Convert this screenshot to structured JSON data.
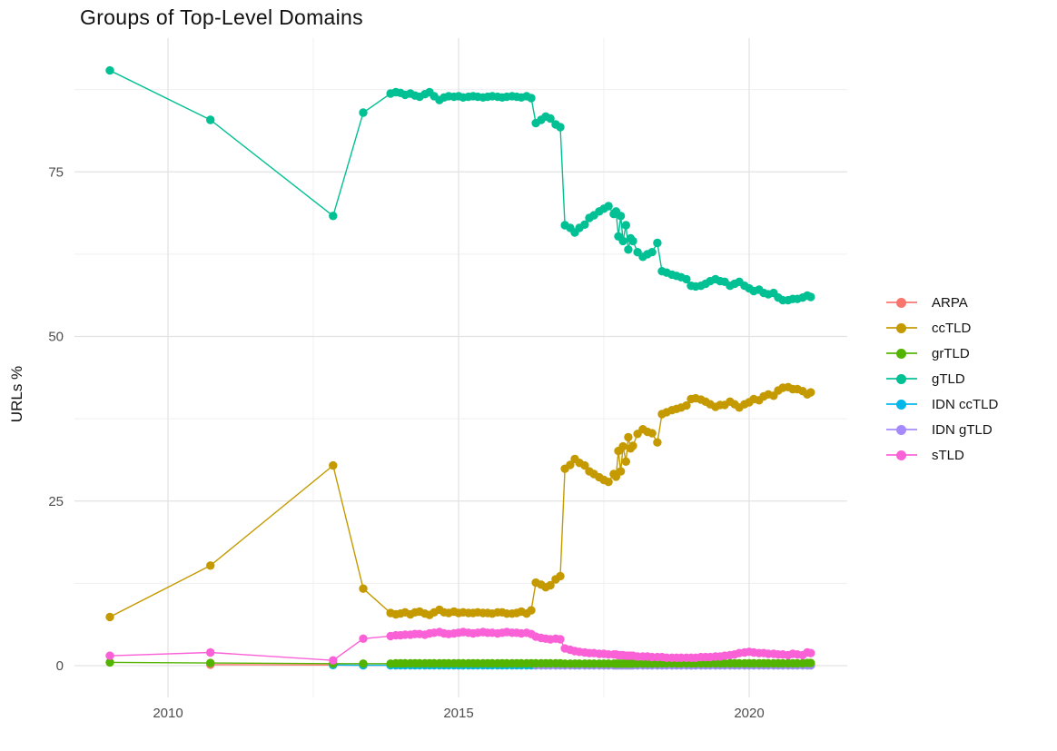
{
  "title": "Groups of Top-Level Domains",
  "chart_data": {
    "type": "line",
    "title": "Groups of Top-Level Domains",
    "xlabel": "",
    "ylabel": "URLs %",
    "legend_position": "right",
    "grid": true,
    "background": "#ffffff",
    "grid_major_color": "#e3e3e3",
    "grid_minor_color": "#efefef",
    "xlim": [
      2008.4,
      2021.7
    ],
    "ylim": [
      -4.8,
      95.3
    ],
    "x_ticks": [
      2010,
      2015,
      2020
    ],
    "x_tick_labels": [
      "2010",
      "2015",
      "2020"
    ],
    "x_minor_ticks": [
      2012.5,
      2017.5
    ],
    "y_ticks": [
      0,
      25,
      50,
      75
    ],
    "y_tick_labels": [
      "0",
      "25",
      "50",
      "75"
    ],
    "y_minor_ticks": [
      12.5,
      37.5,
      62.5,
      87.5
    ],
    "x": [
      2009.0,
      2010.73,
      2012.84,
      2013.36,
      2013.83,
      2013.92,
      2014.0,
      2014.08,
      2014.17,
      2014.25,
      2014.33,
      2014.42,
      2014.5,
      2014.58,
      2014.67,
      2014.75,
      2014.83,
      2014.92,
      2015.0,
      2015.08,
      2015.17,
      2015.25,
      2015.33,
      2015.42,
      2015.5,
      2015.58,
      2015.67,
      2015.75,
      2015.83,
      2015.92,
      2016.0,
      2016.08,
      2016.17,
      2016.25,
      2016.33,
      2016.42,
      2016.5,
      2016.58,
      2016.67,
      2016.75,
      2016.83,
      2016.92,
      2017.0,
      2017.08,
      2017.17,
      2017.25,
      2017.33,
      2017.42,
      2017.5,
      2017.58,
      2017.67,
      2017.71,
      2017.75,
      2017.79,
      2017.83,
      2017.88,
      2017.92,
      2017.96,
      2018.0,
      2018.08,
      2018.17,
      2018.25,
      2018.33,
      2018.42,
      2018.5,
      2018.58,
      2018.67,
      2018.75,
      2018.83,
      2018.92,
      2019.0,
      2019.08,
      2019.17,
      2019.25,
      2019.33,
      2019.42,
      2019.5,
      2019.58,
      2019.67,
      2019.75,
      2019.83,
      2019.92,
      2020.0,
      2020.08,
      2020.17,
      2020.25,
      2020.33,
      2020.42,
      2020.5,
      2020.58,
      2020.67,
      2020.75,
      2020.83,
      2020.92,
      2021.0,
      2021.06
    ],
    "series": [
      {
        "name": "ARPA",
        "color": "#F8766D",
        "values": [
          null,
          0.15,
          0.1,
          0.05,
          0.05,
          0.05,
          0.05,
          0.05,
          0.05,
          0.05,
          0.05,
          0.05,
          0.05,
          0.05,
          0.05,
          0.05,
          0.05,
          0.05,
          0.05,
          0.05,
          0.05,
          0.05,
          0.05,
          0.05,
          0.05,
          0.05,
          0.05,
          0.05,
          0.05,
          0.05,
          0.05,
          0.05,
          0.05,
          0.05,
          0.05,
          0.05,
          0.05,
          0.05,
          0.05,
          0.05,
          0.05,
          0.05,
          0.05,
          0.05,
          0.05,
          0.05,
          0.05,
          0.05,
          0.05,
          0.05,
          0.05,
          0.05,
          0.05,
          0.05,
          0.05,
          0.05,
          0.05,
          0.05,
          0.05,
          0.05,
          0.05,
          0.05,
          0.05,
          0.05,
          0.05,
          0.05,
          0.05,
          0.05,
          0.05,
          0.05,
          0.05,
          0.05,
          0.05,
          0.05,
          0.05,
          0.05,
          0.05,
          0.05,
          0.05,
          0.05,
          0.05,
          0.05,
          0.05,
          0.05,
          0.05,
          0.05,
          0.05,
          0.05,
          0.05,
          0.05,
          0.05,
          0.05,
          0.05,
          0.05,
          0.05,
          0.05
        ]
      },
      {
        "name": "ccTLD",
        "color": "#C49A00",
        "values": [
          7.4,
          15.2,
          30.4,
          11.7,
          8.0,
          7.8,
          7.9,
          8.1,
          7.8,
          8.1,
          8.2,
          7.9,
          7.7,
          8.1,
          8.5,
          8.1,
          8.0,
          8.2,
          8.0,
          8.1,
          8.0,
          8.0,
          8.1,
          8.0,
          8.0,
          7.9,
          8.1,
          8.1,
          7.9,
          7.9,
          8.0,
          8.2,
          7.9,
          8.4,
          12.6,
          12.3,
          11.9,
          12.2,
          13.1,
          13.6,
          29.9,
          30.5,
          31.4,
          30.8,
          30.4,
          29.5,
          29.1,
          28.6,
          28.2,
          27.9,
          29.1,
          28.7,
          32.6,
          29.5,
          33.3,
          31.0,
          34.7,
          33.0,
          33.4,
          35.2,
          35.9,
          35.5,
          35.3,
          33.9,
          38.2,
          38.5,
          38.8,
          39.0,
          39.2,
          39.5,
          40.5,
          40.6,
          40.4,
          40.1,
          39.7,
          39.3,
          39.6,
          39.6,
          40.1,
          39.7,
          39.2,
          39.7,
          40.0,
          40.5,
          40.3,
          40.9,
          41.2,
          41.0,
          41.8,
          42.2,
          42.3,
          42.0,
          42.0,
          41.7,
          41.2,
          41.5
        ]
      },
      {
        "name": "grTLD",
        "color": "#53B400",
        "values": [
          0.5,
          0.4,
          0.3,
          0.3,
          0.3,
          0.35,
          0.35,
          0.35,
          0.35,
          0.35,
          0.35,
          0.35,
          0.35,
          0.35,
          0.35,
          0.35,
          0.35,
          0.35,
          0.35,
          0.35,
          0.35,
          0.35,
          0.35,
          0.35,
          0.35,
          0.35,
          0.35,
          0.35,
          0.35,
          0.35,
          0.35,
          0.35,
          0.35,
          0.35,
          0.35,
          0.35,
          0.35,
          0.35,
          0.35,
          0.35,
          0.3,
          0.3,
          0.3,
          0.3,
          0.3,
          0.3,
          0.3,
          0.3,
          0.3,
          0.3,
          0.3,
          0.3,
          0.3,
          0.3,
          0.3,
          0.3,
          0.3,
          0.3,
          0.3,
          0.3,
          0.3,
          0.3,
          0.3,
          0.3,
          0.35,
          0.35,
          0.35,
          0.35,
          0.35,
          0.35,
          0.35,
          0.35,
          0.35,
          0.35,
          0.35,
          0.35,
          0.35,
          0.35,
          0.35,
          0.35,
          0.35,
          0.35,
          0.35,
          0.35,
          0.35,
          0.35,
          0.35,
          0.35,
          0.35,
          0.35,
          0.35,
          0.35,
          0.35,
          0.35,
          0.4,
          0.4
        ]
      },
      {
        "name": "gTLD",
        "color": "#00C094",
        "values": [
          90.4,
          82.9,
          68.3,
          84.0,
          86.9,
          87.1,
          87.0,
          86.7,
          86.9,
          86.6,
          86.4,
          86.8,
          87.1,
          86.5,
          85.9,
          86.3,
          86.5,
          86.4,
          86.5,
          86.3,
          86.4,
          86.5,
          86.4,
          86.3,
          86.4,
          86.5,
          86.4,
          86.3,
          86.4,
          86.5,
          86.4,
          86.3,
          86.5,
          86.2,
          82.4,
          82.9,
          83.4,
          83.1,
          82.2,
          81.8,
          66.9,
          66.5,
          65.8,
          66.5,
          67.0,
          68.0,
          68.4,
          69.0,
          69.4,
          69.8,
          68.6,
          69.0,
          65.2,
          68.3,
          64.5,
          66.9,
          63.2,
          64.9,
          64.5,
          62.8,
          62.1,
          62.5,
          62.8,
          64.2,
          59.9,
          59.7,
          59.4,
          59.2,
          59.0,
          58.7,
          57.7,
          57.6,
          57.7,
          58.0,
          58.4,
          58.7,
          58.4,
          58.3,
          57.7,
          58.0,
          58.3,
          57.7,
          57.3,
          56.9,
          57.1,
          56.6,
          56.4,
          56.6,
          55.9,
          55.5,
          55.5,
          55.7,
          55.7,
          55.9,
          56.2,
          56.0
        ]
      },
      {
        "name": "IDN ccTLD",
        "color": "#00B6EB",
        "values": [
          null,
          null,
          0.1,
          0.05,
          0.05,
          0.05,
          0.05,
          0.05,
          0.05,
          0.05,
          0.05,
          0.05,
          0.05,
          0.05,
          0.05,
          0.05,
          0.05,
          0.05,
          0.05,
          0.05,
          0.05,
          0.05,
          0.05,
          0.05,
          0.05,
          0.05,
          0.05,
          0.05,
          0.05,
          0.05,
          0.05,
          0.05,
          0.05,
          0.05,
          0.05,
          0.05,
          0.05,
          0.05,
          0.05,
          0.05,
          0.05,
          0.05,
          0.05,
          0.05,
          0.05,
          0.05,
          0.05,
          0.05,
          0.05,
          0.05,
          0.05,
          0.05,
          0.05,
          0.05,
          0.05,
          0.05,
          0.05,
          0.05,
          0.05,
          0.05,
          0.05,
          0.05,
          0.05,
          0.05,
          0.05,
          0.05,
          0.05,
          0.05,
          0.05,
          0.05,
          0.05,
          0.05,
          0.05,
          0.05,
          0.05,
          0.05,
          0.05,
          0.05,
          0.05,
          0.05,
          0.05,
          0.05,
          0.05,
          0.05,
          0.05,
          0.05,
          0.05,
          0.05,
          0.05,
          0.05,
          0.05,
          0.05,
          0.05,
          0.05,
          0.05,
          0.05
        ]
      },
      {
        "name": "IDN gTLD",
        "color": "#A58AFF",
        "values": [
          null,
          null,
          null,
          null,
          null,
          null,
          null,
          null,
          null,
          null,
          null,
          null,
          null,
          null,
          null,
          null,
          null,
          null,
          null,
          null,
          null,
          null,
          null,
          null,
          null,
          null,
          null,
          null,
          null,
          null,
          null,
          null,
          null,
          null,
          0.1,
          0.08,
          0.08,
          0.08,
          0.08,
          0.08,
          0.08,
          0.08,
          0.08,
          0.08,
          0.08,
          0.08,
          0.08,
          0.08,
          0.08,
          0.08,
          0.08,
          0.08,
          0.08,
          0.08,
          0.08,
          0.08,
          0.08,
          0.08,
          0.08,
          0.08,
          0.08,
          0.08,
          0.08,
          0.08,
          0.08,
          0.08,
          0.08,
          0.08,
          0.08,
          0.08,
          0.08,
          0.08,
          0.08,
          0.08,
          0.08,
          0.08,
          0.08,
          0.08,
          0.08,
          0.08,
          0.08,
          0.08,
          0.08,
          0.08,
          0.08,
          0.08,
          0.08,
          0.08,
          0.08,
          0.08,
          0.08,
          0.08,
          0.08,
          0.08,
          0.08,
          0.08
        ]
      },
      {
        "name": "sTLD",
        "color": "#FB61D7",
        "values": [
          1.5,
          2.0,
          0.8,
          4.1,
          4.5,
          4.6,
          4.6,
          4.7,
          4.7,
          4.8,
          4.8,
          4.7,
          4.9,
          5.0,
          5.1,
          4.9,
          4.8,
          4.9,
          5.0,
          5.1,
          5.0,
          4.9,
          5.0,
          5.1,
          5.0,
          5.0,
          4.9,
          5.0,
          5.1,
          5.0,
          5.0,
          4.9,
          5.0,
          4.8,
          4.4,
          4.2,
          4.1,
          4.0,
          4.1,
          4.0,
          2.6,
          2.4,
          2.2,
          2.1,
          2.0,
          1.9,
          1.9,
          1.8,
          1.8,
          1.7,
          1.7,
          1.7,
          1.6,
          1.6,
          1.6,
          1.5,
          1.5,
          1.5,
          1.5,
          1.4,
          1.4,
          1.4,
          1.3,
          1.3,
          1.3,
          1.2,
          1.2,
          1.2,
          1.2,
          1.2,
          1.2,
          1.2,
          1.3,
          1.3,
          1.3,
          1.4,
          1.4,
          1.5,
          1.6,
          1.7,
          1.9,
          2.0,
          2.1,
          2.0,
          1.9,
          1.9,
          1.8,
          1.8,
          1.7,
          1.7,
          1.6,
          1.8,
          1.7,
          1.6,
          2.0,
          1.9
        ]
      }
    ]
  }
}
